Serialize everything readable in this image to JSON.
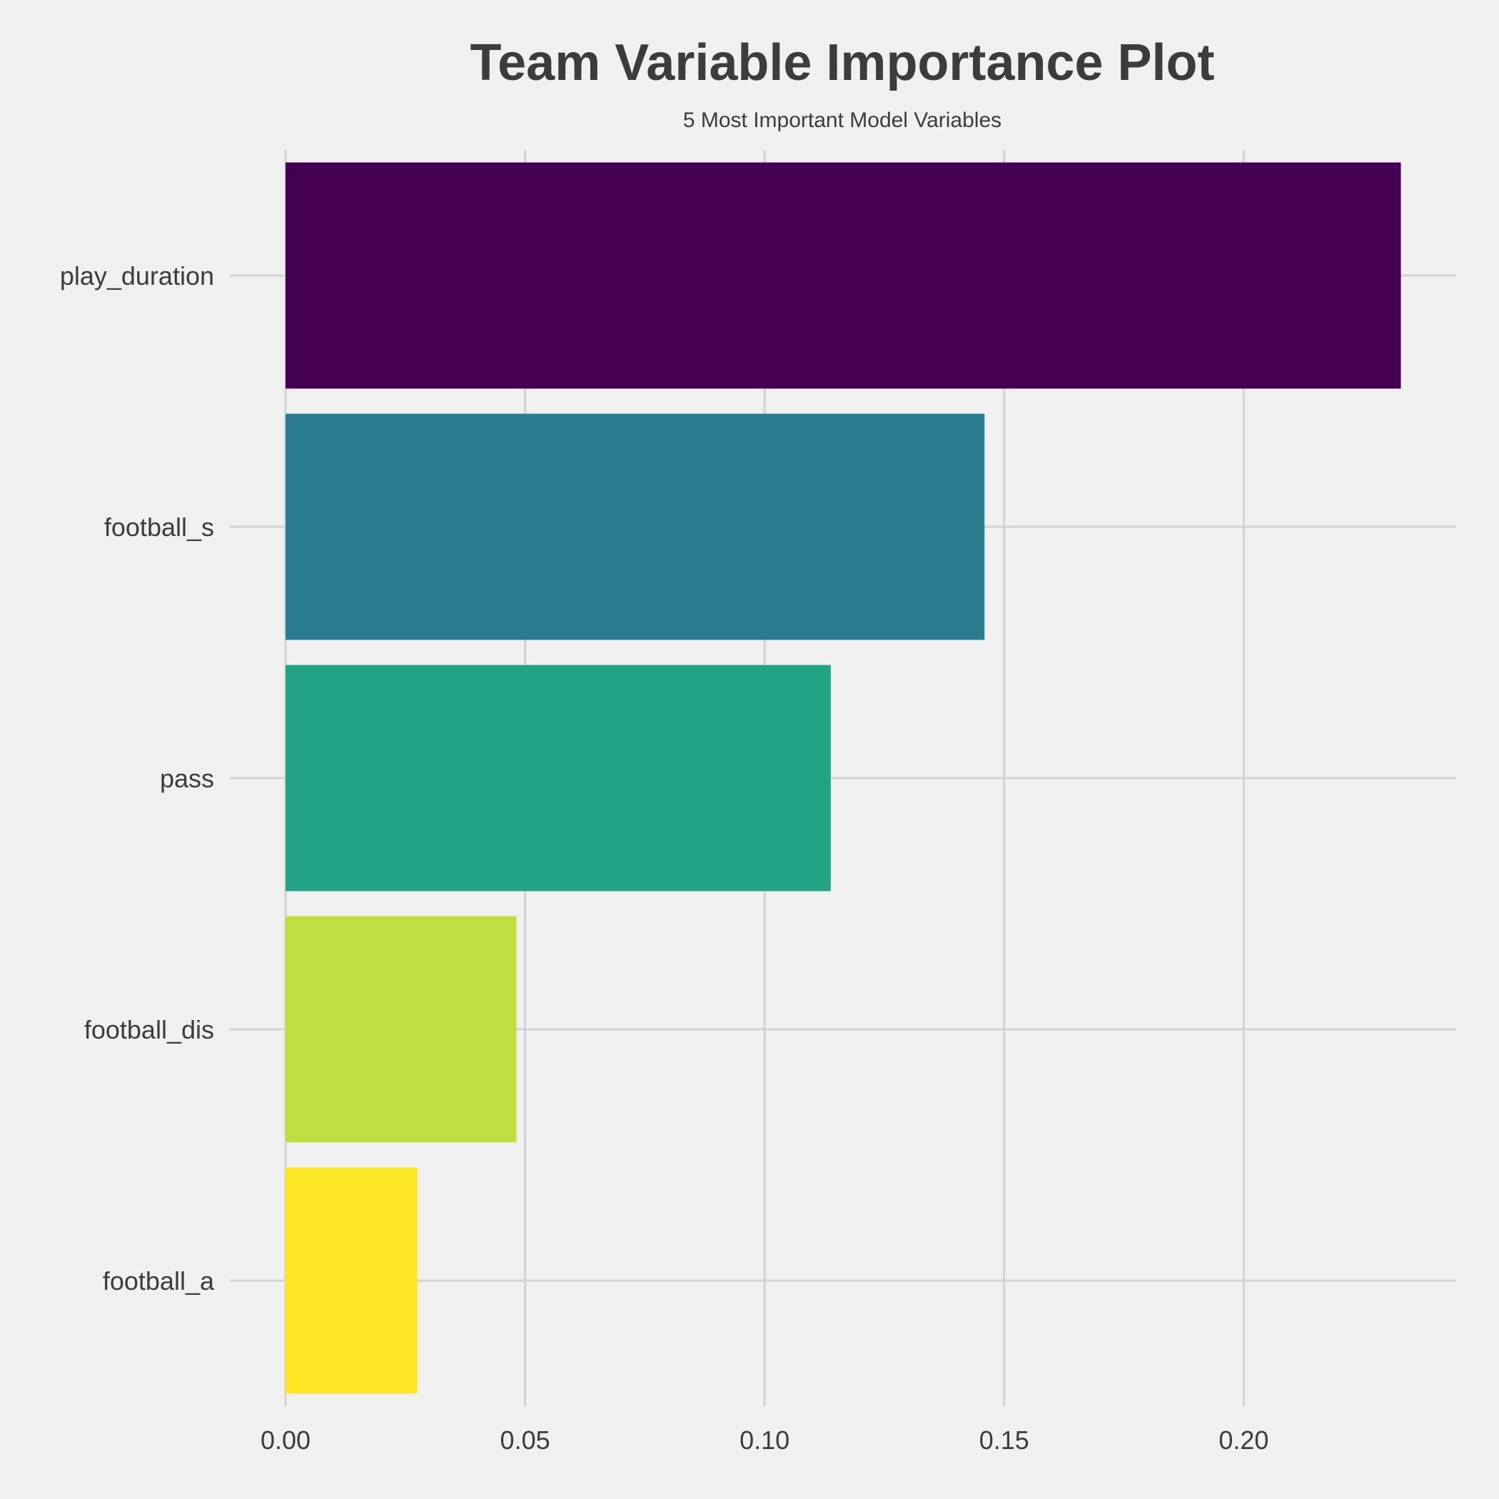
{
  "chart_data": {
    "type": "bar",
    "orientation": "horizontal",
    "title": "Team Variable Importance Plot",
    "subtitle": "5 Most Important Model Variables",
    "xlabel": "",
    "ylabel": "",
    "categories": [
      "play_duration",
      "football_s",
      "pass",
      "football_dis",
      "football_a"
    ],
    "values": [
      0.2328,
      0.1459,
      0.1138,
      0.0482,
      0.0275
    ],
    "bar_colors": [
      "#440154",
      "#2c7c8f",
      "#23a386",
      "#bfdf40",
      "#fde725"
    ],
    "xlim": [
      0.0,
      0.24
    ],
    "x_ticks": [
      0.0,
      0.05,
      0.1,
      0.15,
      0.2
    ],
    "x_tick_labels": [
      "0.00",
      "0.05",
      "0.10",
      "0.15",
      "0.20"
    ],
    "grid": true,
    "legend": false,
    "background_color": "#f0f0f0",
    "grid_color": "#d2d2d2",
    "text_color": "#3c3c3c"
  }
}
